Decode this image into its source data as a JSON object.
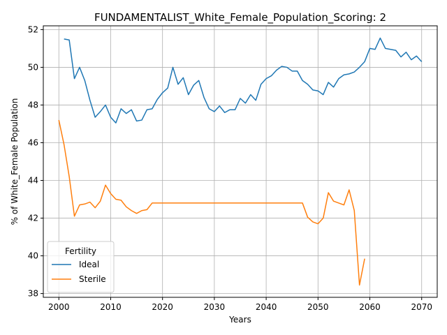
{
  "chart_data": {
    "type": "line",
    "title": "FUNDAMENTALIST_White_Female_Population_Scoring: 2",
    "xlabel": "Years",
    "ylabel": "% of White_Female Population",
    "xlim": [
      1997,
      2073
    ],
    "ylim": [
      37.8,
      52.2
    ],
    "xticks": [
      2000,
      2010,
      2020,
      2030,
      2040,
      2050,
      2060,
      2070
    ],
    "yticks": [
      38,
      40,
      42,
      44,
      46,
      48,
      50,
      52
    ],
    "grid": true,
    "legend": {
      "title": "Fertility",
      "placement": "lower-left"
    },
    "series": [
      {
        "name": "Ideal",
        "color": "#1f77b4",
        "points": [
          [
            2001,
            51.5
          ],
          [
            2002,
            51.45
          ],
          [
            2003,
            49.4
          ],
          [
            2004,
            50.0
          ],
          [
            2005,
            49.3
          ],
          [
            2006,
            48.25
          ],
          [
            2007,
            47.35
          ],
          [
            2008,
            47.65
          ],
          [
            2009,
            48.0
          ],
          [
            2010,
            47.35
          ],
          [
            2011,
            47.05
          ],
          [
            2012,
            47.8
          ],
          [
            2013,
            47.55
          ],
          [
            2014,
            47.75
          ],
          [
            2015,
            47.15
          ],
          [
            2016,
            47.2
          ],
          [
            2017,
            47.75
          ],
          [
            2018,
            47.8
          ],
          [
            2019,
            48.3
          ],
          [
            2020,
            48.65
          ],
          [
            2021,
            48.9
          ],
          [
            2022,
            50.0
          ],
          [
            2023,
            49.1
          ],
          [
            2024,
            49.45
          ],
          [
            2025,
            48.55
          ],
          [
            2026,
            49.05
          ],
          [
            2027,
            49.3
          ],
          [
            2028,
            48.4
          ],
          [
            2029,
            47.8
          ],
          [
            2030,
            47.65
          ],
          [
            2031,
            47.95
          ],
          [
            2032,
            47.6
          ],
          [
            2033,
            47.75
          ],
          [
            2034,
            47.75
          ],
          [
            2035,
            48.35
          ],
          [
            2036,
            48.1
          ],
          [
            2037,
            48.55
          ],
          [
            2038,
            48.25
          ],
          [
            2039,
            49.1
          ],
          [
            2040,
            49.4
          ],
          [
            2041,
            49.55
          ],
          [
            2042,
            49.85
          ],
          [
            2043,
            50.05
          ],
          [
            2044,
            50.0
          ],
          [
            2045,
            49.8
          ],
          [
            2046,
            49.8
          ],
          [
            2047,
            49.3
          ],
          [
            2048,
            49.1
          ],
          [
            2049,
            48.8
          ],
          [
            2050,
            48.75
          ],
          [
            2051,
            48.55
          ],
          [
            2052,
            49.2
          ],
          [
            2053,
            48.95
          ],
          [
            2054,
            49.4
          ],
          [
            2055,
            49.6
          ],
          [
            2056,
            49.65
          ],
          [
            2057,
            49.75
          ],
          [
            2058,
            50.0
          ],
          [
            2059,
            50.3
          ],
          [
            2060,
            51.0
          ],
          [
            2061,
            50.95
          ],
          [
            2062,
            51.55
          ],
          [
            2063,
            51.0
          ],
          [
            2064,
            50.95
          ],
          [
            2065,
            50.9
          ],
          [
            2066,
            50.55
          ],
          [
            2067,
            50.8
          ],
          [
            2068,
            50.4
          ],
          [
            2069,
            50.6
          ],
          [
            2070,
            50.3
          ]
        ]
      },
      {
        "name": "Sterile",
        "color": "#ff7f0e",
        "points": [
          [
            2000,
            47.2
          ],
          [
            2001,
            45.9
          ],
          [
            2002,
            44.2
          ],
          [
            2003,
            42.1
          ],
          [
            2004,
            42.7
          ],
          [
            2005,
            42.75
          ],
          [
            2006,
            42.85
          ],
          [
            2007,
            42.55
          ],
          [
            2008,
            42.9
          ],
          [
            2009,
            43.75
          ],
          [
            2010,
            43.3
          ],
          [
            2011,
            43.0
          ],
          [
            2012,
            42.95
          ],
          [
            2013,
            42.6
          ],
          [
            2014,
            42.4
          ],
          [
            2015,
            42.25
          ],
          [
            2016,
            42.4
          ],
          [
            2017,
            42.45
          ],
          [
            2018,
            42.8
          ],
          [
            2019,
            42.8
          ],
          [
            2020,
            42.8
          ],
          [
            2021,
            42.8
          ],
          [
            2022,
            42.8
          ],
          [
            2023,
            42.8
          ],
          [
            2024,
            42.8
          ],
          [
            2025,
            42.8
          ],
          [
            2026,
            42.8
          ],
          [
            2027,
            42.8
          ],
          [
            2028,
            42.8
          ],
          [
            2029,
            42.8
          ],
          [
            2030,
            42.8
          ],
          [
            2031,
            42.8
          ],
          [
            2032,
            42.8
          ],
          [
            2033,
            42.8
          ],
          [
            2034,
            42.8
          ],
          [
            2035,
            42.8
          ],
          [
            2036,
            42.8
          ],
          [
            2037,
            42.8
          ],
          [
            2038,
            42.8
          ],
          [
            2039,
            42.8
          ],
          [
            2040,
            42.8
          ],
          [
            2041,
            42.8
          ],
          [
            2042,
            42.8
          ],
          [
            2043,
            42.8
          ],
          [
            2044,
            42.8
          ],
          [
            2045,
            42.8
          ],
          [
            2046,
            42.8
          ],
          [
            2047,
            42.8
          ],
          [
            2048,
            42.05
          ],
          [
            2049,
            41.8
          ],
          [
            2050,
            41.7
          ],
          [
            2051,
            42.0
          ],
          [
            2052,
            43.35
          ],
          [
            2053,
            42.9
          ],
          [
            2054,
            42.8
          ],
          [
            2055,
            42.7
          ],
          [
            2056,
            43.5
          ],
          [
            2057,
            42.4
          ],
          [
            2058,
            38.45
          ],
          [
            2059,
            39.85
          ]
        ]
      }
    ]
  }
}
